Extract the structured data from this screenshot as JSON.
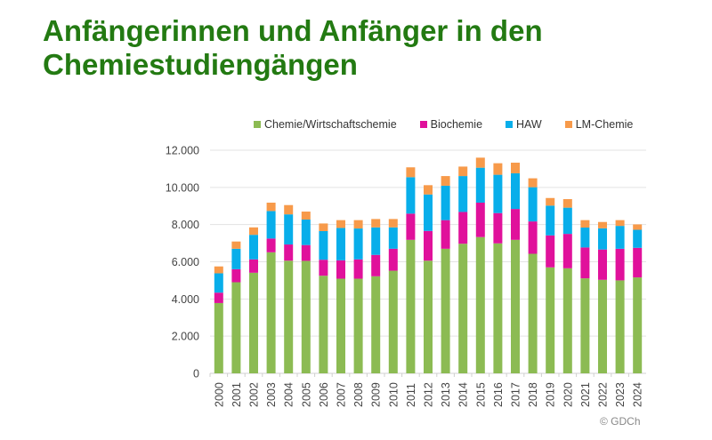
{
  "chart_data": {
    "type": "bar",
    "stacked": true,
    "title": "Anfängerinnen und Anfänger in den Chemiestudiengängen",
    "categories": [
      "2000",
      "2001",
      "2002",
      "2003",
      "2004",
      "2005",
      "2006",
      "2007",
      "2008",
      "2009",
      "2010",
      "2011",
      "2012",
      "2013",
      "2014",
      "2015",
      "2016",
      "2017",
      "2018",
      "2019",
      "2020",
      "2021",
      "2022",
      "2023",
      "2024"
    ],
    "series": [
      {
        "name": "Chemie/Wirtschaftschemie",
        "color": "#8cbb53",
        "values": [
          3780,
          4900,
          5410,
          6510,
          6060,
          6050,
          5250,
          5090,
          5090,
          5220,
          5520,
          7180,
          6060,
          6700,
          6970,
          7330,
          6990,
          7180,
          6430,
          5700,
          5650,
          5110,
          5030,
          5000,
          5160
        ]
      },
      {
        "name": "Biochemie",
        "color": "#e0119b",
        "values": [
          560,
          700,
          720,
          740,
          870,
          850,
          860,
          990,
          1040,
          1150,
          1180,
          1410,
          1600,
          1540,
          1710,
          1850,
          1630,
          1660,
          1740,
          1720,
          1850,
          1660,
          1630,
          1700,
          1590
        ]
      },
      {
        "name": "HAW",
        "color": "#08aeea",
        "values": [
          1040,
          1100,
          1320,
          1480,
          1620,
          1370,
          1540,
          1740,
          1660,
          1480,
          1150,
          1960,
          1960,
          1850,
          1930,
          1880,
          2060,
          1920,
          1840,
          1600,
          1410,
          1070,
          1140,
          1230,
          970
        ]
      },
      {
        "name": "LM-Chemie",
        "color": "#f79a4a",
        "values": [
          370,
          390,
          400,
          450,
          500,
          430,
          410,
          420,
          450,
          450,
          450,
          530,
          500,
          520,
          510,
          540,
          620,
          570,
          480,
          410,
          460,
          400,
          340,
          310,
          290
        ]
      }
    ],
    "yticks": [
      "0",
      "2.000",
      "4.000",
      "6.000",
      "8.000",
      "10.000",
      "12.000"
    ],
    "ylim": [
      0,
      12000
    ],
    "grid": true,
    "legend_position": "top",
    "xlabel": "",
    "ylabel": ""
  },
  "copyright": "© GDCh"
}
